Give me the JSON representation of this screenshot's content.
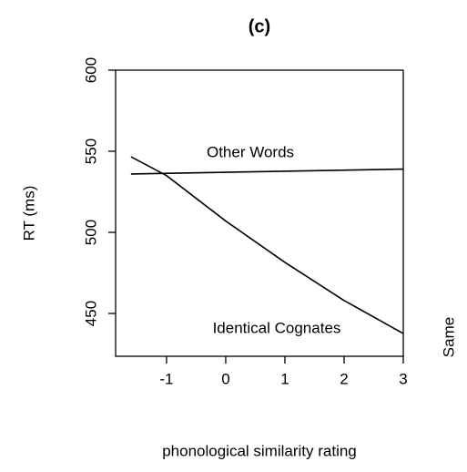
{
  "chart_data": {
    "type": "line",
    "title": "(c)",
    "x_label": "phonological similarity rating",
    "y_label": "RT (ms)",
    "annotations": [
      "Other Words",
      "Identical Cognates",
      "Same"
    ],
    "series": [
      {
        "name": "Other Words",
        "color": "#000000",
        "x": [
          -1.6,
          3.0
        ],
        "values": [
          536,
          539
        ]
      },
      {
        "name": "Identical Cognates",
        "color": "#000000",
        "x": [
          -1.6,
          -1,
          0,
          1,
          2,
          3.0
        ],
        "values": [
          546.6,
          535,
          507,
          481.5,
          458,
          437.6
        ]
      }
    ],
    "xlim": [
      -1.86,
      3.0
    ],
    "xticks": [
      -1,
      0,
      1,
      2,
      3
    ],
    "ylim": [
      423.6,
      600
    ],
    "yticks": [
      450,
      500,
      550,
      600
    ]
  }
}
